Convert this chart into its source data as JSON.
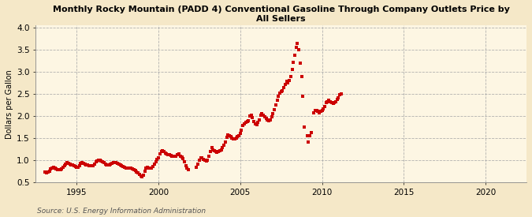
{
  "title": "Monthly Rocky Mountain (PADD 4) Conventional Gasoline Through Company Outlets Price by\nAll Sellers",
  "ylabel": "Dollars per Gallon",
  "source": "Source: U.S. Energy Information Administration",
  "background_color": "#f5e8c8",
  "plot_bg_color": "#fdf6e3",
  "marker_color": "#cc0000",
  "xlim": [
    1992.5,
    2022.5
  ],
  "ylim": [
    0.5,
    4.05
  ],
  "xticks": [
    1995,
    2000,
    2005,
    2010,
    2015,
    2020
  ],
  "yticks": [
    0.5,
    1.0,
    1.5,
    2.0,
    2.5,
    3.0,
    3.5,
    4.0
  ],
  "data": [
    [
      1993.08,
      0.73
    ],
    [
      1993.17,
      0.72
    ],
    [
      1993.25,
      0.74
    ],
    [
      1993.33,
      0.76
    ],
    [
      1993.42,
      0.8
    ],
    [
      1993.5,
      0.83
    ],
    [
      1993.58,
      0.84
    ],
    [
      1993.67,
      0.82
    ],
    [
      1993.75,
      0.81
    ],
    [
      1993.83,
      0.79
    ],
    [
      1993.92,
      0.78
    ],
    [
      1994.0,
      0.78
    ],
    [
      1994.08,
      0.8
    ],
    [
      1994.17,
      0.84
    ],
    [
      1994.25,
      0.88
    ],
    [
      1994.33,
      0.92
    ],
    [
      1994.42,
      0.94
    ],
    [
      1994.5,
      0.93
    ],
    [
      1994.58,
      0.91
    ],
    [
      1994.67,
      0.9
    ],
    [
      1994.75,
      0.89
    ],
    [
      1994.83,
      0.88
    ],
    [
      1994.92,
      0.86
    ],
    [
      1995.0,
      0.84
    ],
    [
      1995.08,
      0.85
    ],
    [
      1995.17,
      0.88
    ],
    [
      1995.25,
      0.93
    ],
    [
      1995.33,
      0.94
    ],
    [
      1995.42,
      0.93
    ],
    [
      1995.5,
      0.91
    ],
    [
      1995.58,
      0.9
    ],
    [
      1995.67,
      0.89
    ],
    [
      1995.75,
      0.88
    ],
    [
      1995.83,
      0.88
    ],
    [
      1995.92,
      0.87
    ],
    [
      1996.0,
      0.88
    ],
    [
      1996.08,
      0.91
    ],
    [
      1996.17,
      0.96
    ],
    [
      1996.25,
      0.99
    ],
    [
      1996.33,
      1.01
    ],
    [
      1996.42,
      1.0
    ],
    [
      1996.5,
      0.98
    ],
    [
      1996.58,
      0.96
    ],
    [
      1996.67,
      0.94
    ],
    [
      1996.75,
      0.92
    ],
    [
      1996.83,
      0.9
    ],
    [
      1996.92,
      0.89
    ],
    [
      1997.0,
      0.89
    ],
    [
      1997.08,
      0.91
    ],
    [
      1997.17,
      0.93
    ],
    [
      1997.25,
      0.95
    ],
    [
      1997.33,
      0.95
    ],
    [
      1997.42,
      0.94
    ],
    [
      1997.5,
      0.93
    ],
    [
      1997.58,
      0.92
    ],
    [
      1997.67,
      0.9
    ],
    [
      1997.75,
      0.88
    ],
    [
      1997.83,
      0.86
    ],
    [
      1997.92,
      0.84
    ],
    [
      1998.0,
      0.82
    ],
    [
      1998.08,
      0.82
    ],
    [
      1998.17,
      0.82
    ],
    [
      1998.25,
      0.82
    ],
    [
      1998.33,
      0.82
    ],
    [
      1998.42,
      0.81
    ],
    [
      1998.5,
      0.79
    ],
    [
      1998.58,
      0.77
    ],
    [
      1998.67,
      0.74
    ],
    [
      1998.75,
      0.71
    ],
    [
      1998.83,
      0.68
    ],
    [
      1998.92,
      0.65
    ],
    [
      1999.0,
      0.63
    ],
    [
      1999.08,
      0.67
    ],
    [
      1999.17,
      0.75
    ],
    [
      1999.25,
      0.82
    ],
    [
      1999.33,
      0.84
    ],
    [
      1999.42,
      0.83
    ],
    [
      1999.5,
      0.82
    ],
    [
      1999.58,
      0.83
    ],
    [
      1999.67,
      0.86
    ],
    [
      1999.75,
      0.91
    ],
    [
      1999.83,
      0.96
    ],
    [
      1999.92,
      1.02
    ],
    [
      2000.0,
      1.06
    ],
    [
      2000.08,
      1.15
    ],
    [
      2000.17,
      1.2
    ],
    [
      2000.25,
      1.22
    ],
    [
      2000.33,
      1.19
    ],
    [
      2000.42,
      1.16
    ],
    [
      2000.5,
      1.14
    ],
    [
      2000.58,
      1.13
    ],
    [
      2000.67,
      1.12
    ],
    [
      2000.75,
      1.11
    ],
    [
      2000.83,
      1.1
    ],
    [
      2000.92,
      1.1
    ],
    [
      2001.0,
      1.09
    ],
    [
      2001.08,
      1.1
    ],
    [
      2001.17,
      1.12
    ],
    [
      2001.25,
      1.14
    ],
    [
      2001.33,
      1.1
    ],
    [
      2001.42,
      1.07
    ],
    [
      2001.5,
      1.03
    ],
    [
      2001.58,
      0.97
    ],
    [
      2001.67,
      0.88
    ],
    [
      2001.75,
      0.83
    ],
    [
      2001.83,
      0.78
    ],
    [
      2002.33,
      0.85
    ],
    [
      2002.42,
      0.92
    ],
    [
      2002.5,
      1.0
    ],
    [
      2002.58,
      1.06
    ],
    [
      2002.67,
      1.05
    ],
    [
      2002.75,
      1.02
    ],
    [
      2002.83,
      1.0
    ],
    [
      2002.92,
      0.98
    ],
    [
      2003.0,
      1.0
    ],
    [
      2003.08,
      1.1
    ],
    [
      2003.17,
      1.2
    ],
    [
      2003.25,
      1.28
    ],
    [
      2003.33,
      1.24
    ],
    [
      2003.42,
      1.22
    ],
    [
      2003.5,
      1.2
    ],
    [
      2003.58,
      1.18
    ],
    [
      2003.67,
      1.2
    ],
    [
      2003.75,
      1.22
    ],
    [
      2003.83,
      1.24
    ],
    [
      2003.92,
      1.28
    ],
    [
      2004.0,
      1.34
    ],
    [
      2004.08,
      1.42
    ],
    [
      2004.17,
      1.52
    ],
    [
      2004.25,
      1.58
    ],
    [
      2004.33,
      1.56
    ],
    [
      2004.42,
      1.53
    ],
    [
      2004.5,
      1.51
    ],
    [
      2004.58,
      1.49
    ],
    [
      2004.67,
      1.48
    ],
    [
      2004.75,
      1.5
    ],
    [
      2004.83,
      1.53
    ],
    [
      2004.92,
      1.55
    ],
    [
      2005.0,
      1.6
    ],
    [
      2005.08,
      1.68
    ],
    [
      2005.17,
      1.78
    ],
    [
      2005.25,
      1.82
    ],
    [
      2005.33,
      1.85
    ],
    [
      2005.42,
      1.87
    ],
    [
      2005.5,
      1.9
    ],
    [
      2005.58,
      2.0
    ],
    [
      2005.67,
      2.02
    ],
    [
      2005.75,
      1.96
    ],
    [
      2005.83,
      1.88
    ],
    [
      2005.92,
      1.82
    ],
    [
      2006.0,
      1.8
    ],
    [
      2006.08,
      1.85
    ],
    [
      2006.17,
      1.92
    ],
    [
      2006.25,
      2.02
    ],
    [
      2006.33,
      2.06
    ],
    [
      2006.42,
      2.02
    ],
    [
      2006.5,
      1.98
    ],
    [
      2006.58,
      1.95
    ],
    [
      2006.67,
      1.92
    ],
    [
      2006.75,
      1.9
    ],
    [
      2006.83,
      1.92
    ],
    [
      2006.92,
      1.98
    ],
    [
      2007.0,
      2.05
    ],
    [
      2007.08,
      2.15
    ],
    [
      2007.17,
      2.25
    ],
    [
      2007.25,
      2.35
    ],
    [
      2007.33,
      2.45
    ],
    [
      2007.42,
      2.52
    ],
    [
      2007.5,
      2.55
    ],
    [
      2007.58,
      2.58
    ],
    [
      2007.67,
      2.65
    ],
    [
      2007.75,
      2.72
    ],
    [
      2007.83,
      2.78
    ],
    [
      2007.92,
      2.75
    ],
    [
      2008.0,
      2.8
    ],
    [
      2008.08,
      2.9
    ],
    [
      2008.17,
      3.05
    ],
    [
      2008.25,
      3.22
    ],
    [
      2008.33,
      3.38
    ],
    [
      2008.42,
      3.55
    ],
    [
      2008.5,
      3.65
    ],
    [
      2008.58,
      3.5
    ],
    [
      2008.67,
      3.2
    ],
    [
      2008.75,
      2.9
    ],
    [
      2008.83,
      2.45
    ],
    [
      2008.92,
      1.75
    ],
    [
      2009.08,
      1.55
    ],
    [
      2009.17,
      1.42
    ],
    [
      2009.25,
      1.55
    ],
    [
      2009.33,
      1.62
    ],
    [
      2009.5,
      2.08
    ],
    [
      2009.58,
      2.12
    ],
    [
      2009.67,
      2.12
    ],
    [
      2009.75,
      2.1
    ],
    [
      2009.83,
      2.08
    ],
    [
      2009.92,
      2.1
    ],
    [
      2010.0,
      2.12
    ],
    [
      2010.08,
      2.17
    ],
    [
      2010.17,
      2.22
    ],
    [
      2010.25,
      2.3
    ],
    [
      2010.33,
      2.32
    ],
    [
      2010.42,
      2.35
    ],
    [
      2010.5,
      2.32
    ],
    [
      2010.58,
      2.3
    ],
    [
      2010.67,
      2.28
    ],
    [
      2010.75,
      2.3
    ],
    [
      2010.83,
      2.32
    ],
    [
      2010.92,
      2.38
    ],
    [
      2011.0,
      2.42
    ],
    [
      2011.08,
      2.48
    ],
    [
      2011.17,
      2.5
    ]
  ]
}
